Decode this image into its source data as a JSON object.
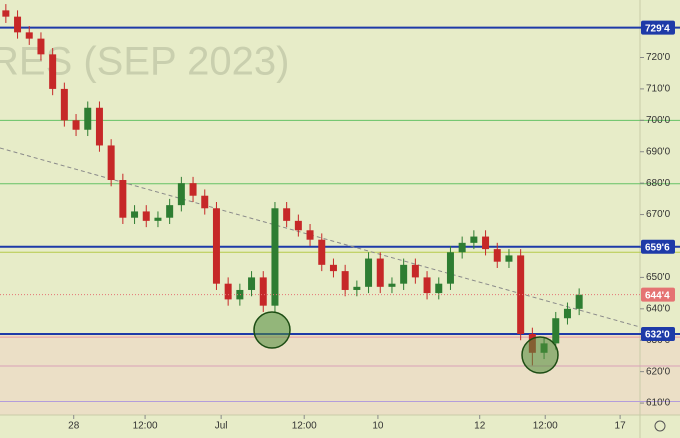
{
  "chart_data": {
    "type": "candlestick",
    "watermark": "RES (SEP 2023)",
    "open": [
      735,
      733,
      728,
      726,
      721,
      710,
      700,
      697,
      704,
      692,
      681,
      669,
      671,
      668,
      669,
      673,
      680,
      676,
      672,
      648,
      643,
      646,
      650,
      641,
      672,
      668,
      665,
      662,
      654,
      652,
      646,
      647,
      656,
      647,
      648,
      654,
      650,
      645,
      648,
      658,
      661,
      663,
      659,
      655,
      657,
      632,
      626,
      629,
      637,
      640
    ],
    "high": [
      737,
      735,
      730,
      728,
      723,
      712,
      702,
      706,
      706,
      694,
      683,
      673,
      673,
      671,
      675,
      682,
      682,
      678,
      674,
      650,
      648,
      652,
      652,
      674,
      674,
      670,
      667,
      664,
      656,
      654,
      649,
      658,
      658,
      650,
      656,
      656,
      652,
      650,
      660,
      663,
      665,
      665,
      661,
      659,
      659,
      634,
      631,
      639,
      642,
      646.5
    ],
    "low": [
      731,
      726,
      724,
      719,
      708,
      698,
      695,
      695,
      690,
      679,
      667,
      667,
      666,
      666,
      667,
      671,
      674,
      670,
      646,
      641,
      641,
      644,
      639,
      639,
      666,
      663,
      660,
      652,
      650,
      644,
      644,
      645,
      645,
      645,
      646,
      648,
      643,
      643,
      646,
      656,
      659,
      657,
      653,
      653,
      630,
      622,
      624,
      627,
      635,
      638
    ],
    "close": [
      733,
      728,
      726,
      721,
      710,
      700,
      697,
      704,
      692,
      681,
      669,
      671,
      668,
      669,
      673,
      680,
      676,
      672,
      648,
      643,
      646,
      650,
      641,
      672,
      668,
      665,
      662,
      654,
      652,
      646,
      647,
      656,
      647,
      648,
      654,
      650,
      645,
      648,
      658,
      661,
      663,
      659,
      655,
      657,
      632,
      626,
      629,
      637,
      640,
      644.5
    ],
    "up_color": "#2e7d32",
    "down_color": "#c62828",
    "xlim": [
      -0.5,
      54.2
    ],
    "ylim": [
      606.2,
      738.3
    ],
    "xticks": [
      {
        "value": 5.8,
        "label": "28"
      },
      {
        "value": 11.9,
        "label": "12:00"
      },
      {
        "value": 18.4,
        "label": "Jul"
      },
      {
        "value": 25.5,
        "label": "12:00"
      },
      {
        "value": 31.8,
        "label": "10"
      },
      {
        "value": 40.5,
        "label": "12"
      },
      {
        "value": 46.1,
        "label": "12:00"
      },
      {
        "value": 52.5,
        "label": "17"
      }
    ],
    "yticks": [
      {
        "value": 610,
        "label": "610'0"
      },
      {
        "value": 620,
        "label": "620'0"
      },
      {
        "value": 630,
        "label": "630'0"
      },
      {
        "value": 640,
        "label": "640'0"
      },
      {
        "value": 650,
        "label": "650'0"
      },
      {
        "value": 660,
        "label": "660'0"
      },
      {
        "value": 670,
        "label": "670'0"
      },
      {
        "value": 680,
        "label": "680'0"
      },
      {
        "value": 690,
        "label": "690'0"
      },
      {
        "value": 700,
        "label": "700'0"
      },
      {
        "value": 710,
        "label": "710'0"
      },
      {
        "value": 720,
        "label": "720'0"
      }
    ],
    "levels": [
      {
        "value": 729.5,
        "color": "#1e3aa8"
      },
      {
        "value": 700,
        "color": "#66c266"
      },
      {
        "value": 679.8,
        "color": "#66c266"
      },
      {
        "value": 659.75,
        "color": "#1e3aa8"
      },
      {
        "value": 658,
        "color": "#b5c94a"
      },
      {
        "value": 632,
        "color": "#1e3aa8"
      },
      {
        "value": 631,
        "color": "#e79aa6"
      },
      {
        "value": 621.8,
        "color": "#d9a0b8"
      },
      {
        "value": 610.5,
        "color": "#b39ddb"
      }
    ],
    "price_labels": [
      {
        "value": 729.5,
        "label": "729'4",
        "color": "#1e3aa8"
      },
      {
        "value": 659.75,
        "label": "659'6",
        "color": "#1e3aa8"
      },
      {
        "value": 644.5,
        "label": "644'4",
        "color": "#e57373"
      },
      {
        "value": 632,
        "label": "632'0",
        "color": "#1e3aa8"
      }
    ]
  }
}
